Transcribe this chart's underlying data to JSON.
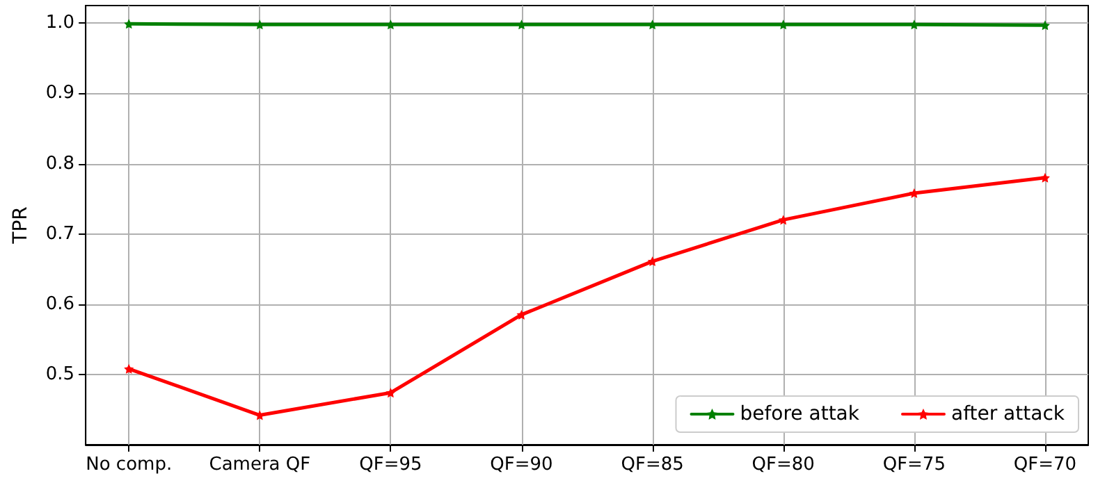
{
  "chart_data": {
    "type": "line",
    "ylabel": "TPR",
    "categories": [
      "No comp.",
      "Camera QF",
      "QF=95",
      "QF=90",
      "QF=85",
      "QF=80",
      "QF=75",
      "QF=70"
    ],
    "series": [
      {
        "name": "before attak",
        "color": "#008000",
        "values": [
          0.999,
          0.998,
          0.998,
          0.998,
          0.998,
          0.998,
          0.998,
          0.997
        ]
      },
      {
        "name": "after attack",
        "color": "#ff0000",
        "values": [
          0.508,
          0.442,
          0.474,
          0.585,
          0.661,
          0.72,
          0.758,
          0.78
        ]
      }
    ],
    "ylim": [
      0.4,
      1.025
    ],
    "yticks": [
      {
        "value": 0.5,
        "label": "0.5"
      },
      {
        "value": 0.6,
        "label": "0.6"
      },
      {
        "value": 0.7,
        "label": "0.7"
      },
      {
        "value": 0.8,
        "label": "0.8"
      },
      {
        "value": 0.9,
        "label": "0.9"
      },
      {
        "value": 1,
        "label": "1.0"
      }
    ],
    "grid": true,
    "legend": "bottom right",
    "marker": "star",
    "line_style": "solid"
  }
}
